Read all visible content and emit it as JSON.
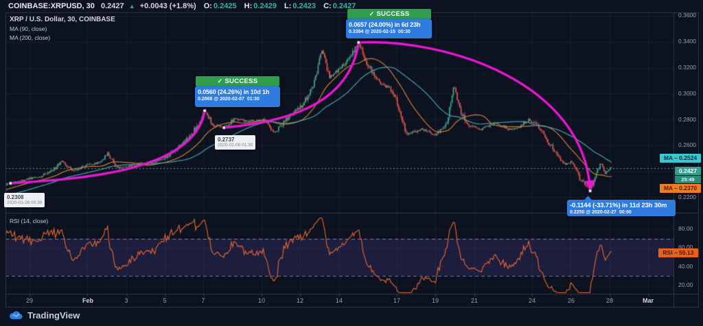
{
  "header": {
    "symbol": "COINBASE:XRPUSD, 30",
    "last": "0.2427",
    "direction_icon": "▲",
    "change": "+0.0043 (+1.8%)",
    "o_label": "O:",
    "o": "0.2425",
    "h_label": "H:",
    "h": "0.2429",
    "l_label": "L:",
    "l": "0.2423",
    "c_label": "C:",
    "c": "0.2427"
  },
  "legend": {
    "title": "XRP / U.S. Dollar, 30, COINBASE",
    "ma1": "MA (90, close)",
    "ma2": "MA (200, close)"
  },
  "rsi_legend": "RSI (14, close)",
  "annotations": {
    "success1": {
      "check": "✓",
      "badge": "SUCCESS",
      "line1": "0.0560 (24.26%) in 10d 1h",
      "line2": "0.2868 @ 2020-02-07  01:30"
    },
    "success2": {
      "check": "✓",
      "badge": "SUCCESS",
      "line1": "0.0657 (24.00%) in 6d 23h",
      "line2": "0.3394 @ 2020-02-15  00:30"
    },
    "decline": {
      "line1": "-0.1144 (-33.71%) in 11d 23h 30m",
      "line2": "0.2250 @ 2020-02-27  00:00"
    },
    "point1": {
      "value": "0.2308",
      "date": "2020-01-28 00:30"
    },
    "point2": {
      "value": "0.2737",
      "date": "2020-02-08 01:30"
    }
  },
  "price_axis": {
    "ticks": [
      "0.3600",
      "0.3400",
      "0.3200",
      "0.3000",
      "0.2800",
      "0.2600",
      "0.2200"
    ],
    "ma_slow_label": "MA – 0.2524",
    "last_label": "0.2427",
    "countdown": "25:49",
    "ma_fast_label": "MA – 0.2370"
  },
  "rsi_axis": {
    "ticks": [
      "80.00",
      "60.00",
      "40.00",
      "20.00"
    ],
    "value_label": "RSI – 55.13"
  },
  "time_axis": {
    "ticks": [
      "29",
      "Feb",
      "3",
      "5",
      "7",
      "10",
      "12",
      "14",
      "17",
      "19",
      "21",
      "24",
      "26",
      "28",
      "Mar"
    ]
  },
  "logo": {
    "text": "TradingView"
  },
  "theme": {
    "background": "#0d1220",
    "grid": "rgba(255,255,255,0.05)",
    "grid_faint": "rgba(255,255,255,0.04)",
    "frame": "#2e3342",
    "candle_up": "#4ba98e",
    "candle_down": "#dd5e54",
    "ma_fast": "#c98138",
    "ma_slow": "#43a3ad",
    "trend": "#e718d2",
    "price_line": "#3fae9a",
    "rsi_line": "#ea6a2f",
    "rsi_band": "rgba(118,86,222,0.16)",
    "rsi_level": "rgba(222,226,235,0.5)",
    "success_green": "#2f9e4c",
    "info_blue": "#2f7ce0",
    "label_cyan": "#3bc6d1",
    "label_teal": "#33a08b",
    "label_teal_dark": "#2a8a79",
    "label_orange": "#ef7c23",
    "rsi_value_orange": "#e8611c"
  },
  "chart_data": {
    "type": "candlestick",
    "title": "XRP / U.S. Dollar, 30, COINBASE",
    "interval_minutes": 30,
    "price_ticks": [
      0.36,
      0.34,
      0.32,
      0.3,
      0.28,
      0.26,
      0.24,
      0.22
    ],
    "time_ticks": [
      {
        "label": "29",
        "day": 1
      },
      {
        "label": "Feb",
        "day": 4
      },
      {
        "label": "3",
        "day": 6
      },
      {
        "label": "5",
        "day": 8
      },
      {
        "label": "7",
        "day": 10
      },
      {
        "label": "10",
        "day": 13
      },
      {
        "label": "12",
        "day": 15
      },
      {
        "label": "14",
        "day": 17
      },
      {
        "label": "17",
        "day": 20
      },
      {
        "label": "19",
        "day": 22
      },
      {
        "label": "21",
        "day": 24
      },
      {
        "label": "24",
        "day": 27
      },
      {
        "label": "26",
        "day": 29
      },
      {
        "label": "28",
        "day": 31
      },
      {
        "label": "Mar",
        "day": 33
      }
    ],
    "last_price": 0.2427,
    "pre_path": [
      [
        -4.2,
        0.215
      ],
      [
        -2.5,
        0.218
      ],
      [
        -1.2,
        0.2255
      ],
      [
        -0.3,
        0.2295
      ]
    ],
    "close_path": [
      [
        0.02,
        0.2308
      ],
      [
        0.8,
        0.2335
      ],
      [
        1.6,
        0.2365
      ],
      [
        2.2,
        0.241
      ],
      [
        2.7,
        0.248
      ],
      [
        3.2,
        0.2405
      ],
      [
        3.9,
        0.2445
      ],
      [
        4.6,
        0.2465
      ],
      [
        5.05,
        0.254
      ],
      [
        5.5,
        0.243
      ],
      [
        6.1,
        0.244
      ],
      [
        6.9,
        0.2465
      ],
      [
        7.6,
        0.2475
      ],
      [
        8.1,
        0.251
      ],
      [
        8.9,
        0.2615
      ],
      [
        9.6,
        0.273
      ],
      [
        10.06,
        0.2868
      ],
      [
        10.45,
        0.2765
      ],
      [
        11.06,
        0.2737
      ],
      [
        11.6,
        0.2805
      ],
      [
        12.3,
        0.2785
      ],
      [
        13.1,
        0.28
      ],
      [
        13.65,
        0.2695
      ],
      [
        14.4,
        0.282
      ],
      [
        15.1,
        0.2905
      ],
      [
        15.7,
        0.307
      ],
      [
        16.15,
        0.3345
      ],
      [
        16.5,
        0.3125
      ],
      [
        17.1,
        0.3195
      ],
      [
        17.6,
        0.3285
      ],
      [
        18.02,
        0.3394
      ],
      [
        18.45,
        0.323
      ],
      [
        19.1,
        0.3085
      ],
      [
        19.8,
        0.3025
      ],
      [
        20.5,
        0.2685
      ],
      [
        21.3,
        0.2725
      ],
      [
        22.0,
        0.268
      ],
      [
        22.6,
        0.278
      ],
      [
        22.95,
        0.3065
      ],
      [
        23.25,
        0.2875
      ],
      [
        23.7,
        0.2755
      ],
      [
        24.3,
        0.272
      ],
      [
        25.1,
        0.277
      ],
      [
        25.8,
        0.2725
      ],
      [
        26.4,
        0.2745
      ],
      [
        26.8,
        0.28
      ],
      [
        27.3,
        0.275
      ],
      [
        27.9,
        0.2615
      ],
      [
        28.3,
        0.252
      ],
      [
        28.7,
        0.2455
      ],
      [
        29.1,
        0.248
      ],
      [
        29.5,
        0.233
      ],
      [
        29.8,
        0.2295
      ],
      [
        30.0,
        0.225
      ],
      [
        30.3,
        0.238
      ],
      [
        30.55,
        0.2465
      ],
      [
        30.8,
        0.2385
      ],
      [
        31.1,
        0.2427
      ]
    ],
    "overlays": [
      {
        "name": "MA (90, close)",
        "color": "#c98138",
        "last_value": 0.237
      },
      {
        "name": "MA (200, close)",
        "color": "#43a3ad",
        "last_value": 0.2524
      }
    ],
    "marked_points": [
      {
        "day": 0.02,
        "price": 0.2308,
        "date": "2020-01-28 00:30"
      },
      {
        "day": 10.06,
        "price": 0.2868,
        "date": "2020-02-07 01:30"
      },
      {
        "day": 11.06,
        "price": 0.2737,
        "date": "2020-02-08 01:30"
      },
      {
        "day": 18.02,
        "price": 0.3394,
        "date": "2020-02-15 00:30"
      },
      {
        "day": 30.0,
        "price": 0.225,
        "date": "2020-02-27 00:00"
      }
    ],
    "trend_moves": [
      {
        "change": 0.056,
        "pct": 24.26,
        "duration": "10d 1h",
        "target": "0.2868 @ 2020-02-07 01:30",
        "result": "SUCCESS"
      },
      {
        "change": 0.0657,
        "pct": 24.0,
        "duration": "6d 23h",
        "target": "0.3394 @ 2020-02-15 00:30",
        "result": "SUCCESS"
      },
      {
        "change": -0.1144,
        "pct": -33.71,
        "duration": "11d 23h 30m",
        "target": "0.2250 @ 2020-02-27 00:00"
      }
    ],
    "rsi": {
      "period": 14,
      "last": 55.13,
      "upper": 70,
      "lower": 30,
      "ticks": [
        80,
        60,
        40,
        20
      ]
    }
  }
}
